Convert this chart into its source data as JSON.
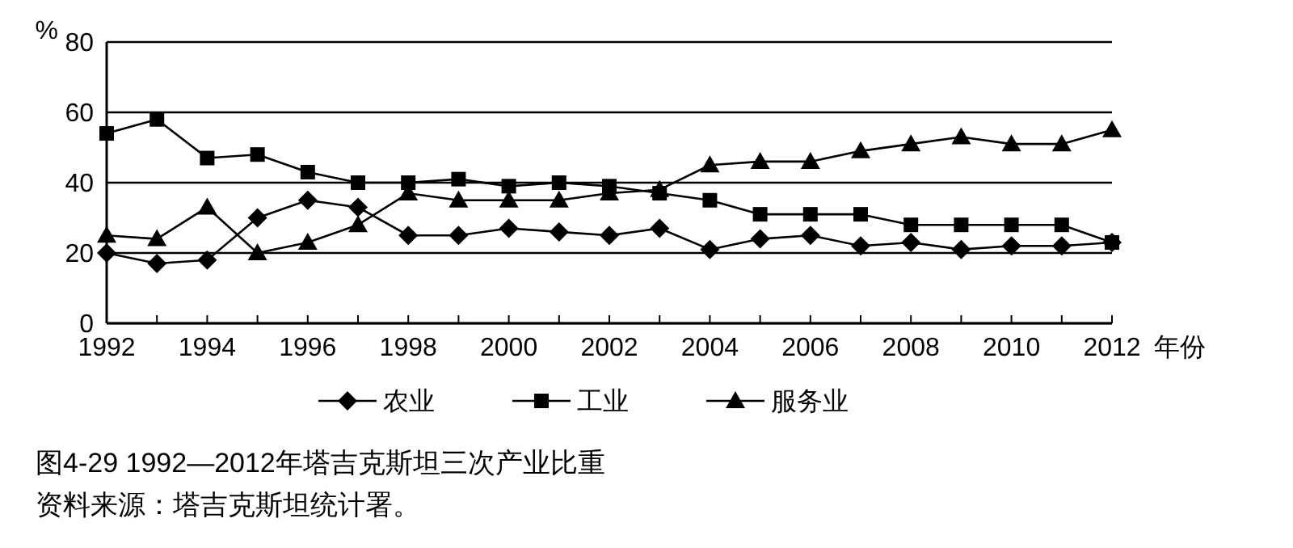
{
  "chart_data": {
    "type": "line",
    "title": "图4-29   1992—2012年塔吉克斯坦三次产业比重",
    "annotations": [
      "资料来源：塔吉克斯坦统计署。"
    ],
    "xlabel": "年份",
    "ylabel": "%",
    "x": [
      1992,
      1993,
      1994,
      1995,
      1996,
      1997,
      1998,
      1999,
      2000,
      2001,
      2002,
      2003,
      2004,
      2005,
      2006,
      2007,
      2008,
      2009,
      2010,
      2011,
      2012
    ],
    "xlim": [
      1992,
      2012
    ],
    "xticks": [
      1992,
      {
        "value": 1993,
        "label": null
      },
      1994,
      {
        "value": 1995,
        "label": null
      },
      1996,
      {
        "value": 1997,
        "label": null
      },
      1998,
      {
        "value": 1999,
        "label": null
      },
      2000,
      {
        "value": 2001,
        "label": null
      },
      2002,
      {
        "value": 2003,
        "label": null
      },
      2004,
      {
        "value": 2005,
        "label": null
      },
      2006,
      {
        "value": 2007,
        "label": null
      },
      2008,
      {
        "value": 2009,
        "label": null
      },
      2010,
      {
        "value": 2011,
        "label": null
      },
      2012
    ],
    "ylim": [
      0,
      80
    ],
    "yticks": [
      0,
      20,
      40,
      60,
      80
    ],
    "grid": "y",
    "legend": "bottom",
    "line_style": "solid",
    "series": [
      {
        "name": "农业",
        "color": "#000000",
        "marker": "diamond",
        "values": [
          20,
          17,
          18,
          30,
          35,
          33,
          25,
          25,
          27,
          26,
          25,
          27,
          21,
          24,
          25,
          22,
          23,
          21,
          22,
          22,
          23
        ]
      },
      {
        "name": "工业",
        "color": "#000000",
        "marker": "square",
        "values": [
          54,
          58,
          47,
          48,
          43,
          40,
          40,
          41,
          39,
          40,
          39,
          37,
          35,
          31,
          31,
          31,
          28,
          28,
          28,
          28,
          23
        ]
      },
      {
        "name": "服务业",
        "color": "#000000",
        "marker": "triangle",
        "values": [
          25,
          24,
          33,
          20,
          23,
          28,
          37,
          35,
          35,
          35,
          37,
          38,
          45,
          46,
          46,
          49,
          51,
          53,
          51,
          51,
          55
        ]
      }
    ]
  }
}
